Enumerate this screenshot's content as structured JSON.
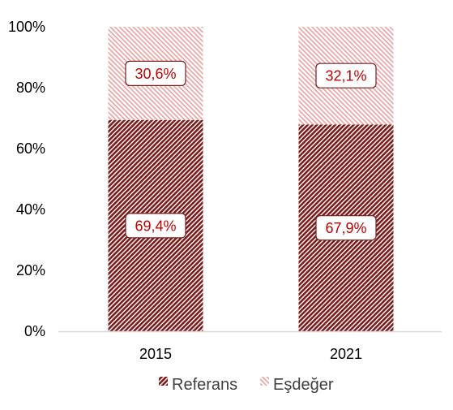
{
  "chart_data": {
    "type": "bar",
    "stacked": true,
    "percent": true,
    "categories": [
      "2015",
      "2021"
    ],
    "series": [
      {
        "name": "Referans",
        "values": [
          69.4,
          67.9
        ],
        "labels": [
          "69,4%",
          "67,9%"
        ],
        "color": "#7b1c1c",
        "pattern": "dense-diagonal-hatch"
      },
      {
        "name": "Eşdeğer",
        "values": [
          30.6,
          32.1
        ],
        "labels": [
          "30,6%",
          "32,1%"
        ],
        "color": "#e8a0a0",
        "pattern": "light-diagonal-hatch"
      }
    ],
    "ylim": [
      0,
      100
    ],
    "yticks": [
      "0%",
      "20%",
      "40%",
      "60%",
      "80%",
      "100%"
    ],
    "legend": "bottom",
    "grid": false,
    "data_label_color": "#c00000"
  }
}
